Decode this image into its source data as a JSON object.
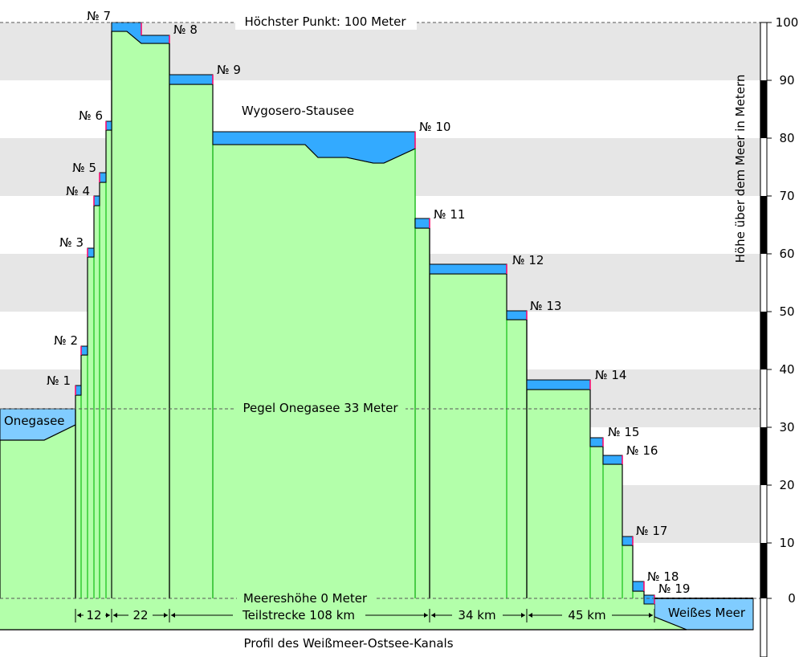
{
  "title": "Profil des Weißmeer-Ostsee-Kanals",
  "axis_label": "Höhe über dem Meer in Metern",
  "y_ticks": [
    "100",
    "90",
    "80",
    "70",
    "60",
    "50",
    "40",
    "30",
    "20",
    "10",
    "0"
  ],
  "reference_lines": {
    "highest": "Höchster Punkt: 100 Meter",
    "onega_level": "Pegel Onegasee 33 Meter",
    "sea_level": "Meereshöhe 0 Meter"
  },
  "water_labels": {
    "onega": "Onegasee",
    "reservoir": "Wygosero-Stausee",
    "white_sea": "Weißes Meer"
  },
  "locks": [
    "№ 1",
    "№ 2",
    "№ 3",
    "№ 4",
    "№ 5",
    "№ 6",
    "№ 7",
    "№ 8",
    "№ 9",
    "№ 10",
    "№ 11",
    "№ 12",
    "№ 13",
    "№ 14",
    "№ 15",
    "№ 16",
    "№ 17",
    "№ 18",
    "№ 19"
  ],
  "segments": [
    "12",
    "22",
    "Teilstrecke 108 km",
    "34 km",
    "45 km"
  ],
  "colors": {
    "ground": "#b3ffaa",
    "water": "#80ccff",
    "water_band": "#33aaff",
    "band": "#e6e6e6",
    "lock_mark": "#ff0066",
    "lock_line": "#33cc33"
  },
  "chart_data": {
    "type": "area",
    "ylabel": "Höhe über dem Meer in Metern",
    "ylim": [
      -5,
      100
    ],
    "lock_water_levels_m": [
      {
        "lock": "№ 1",
        "upper": 36.5
      },
      {
        "lock": "№ 2",
        "upper": 43.5
      },
      {
        "lock": "№ 3",
        "upper": 60.5
      },
      {
        "lock": "№ 4",
        "upper": 69.5
      },
      {
        "lock": "№ 5",
        "upper": 73.5
      },
      {
        "lock": "№ 6",
        "upper": 82.5
      },
      {
        "lock": "№ 7",
        "upper": 100
      },
      {
        "lock": "№ 8",
        "upper": 98
      },
      {
        "lock": "№ 9",
        "upper": 91
      },
      {
        "lock": "№ 10",
        "upper": 81
      },
      {
        "lock": "№ 11",
        "upper": 66
      },
      {
        "lock": "№ 12",
        "upper": 58
      },
      {
        "lock": "№ 13",
        "upper": 50
      },
      {
        "lock": "№ 14",
        "upper": 38
      },
      {
        "lock": "№ 15",
        "upper": 28
      },
      {
        "lock": "№ 16",
        "upper": 25
      },
      {
        "lock": "№ 17",
        "upper": 11
      },
      {
        "lock": "№ 18",
        "upper": 3
      },
      {
        "lock": "№ 19",
        "upper": 1
      }
    ],
    "onega_level_m": 33,
    "highest_point_m": 100,
    "sea_level_m": 0
  }
}
